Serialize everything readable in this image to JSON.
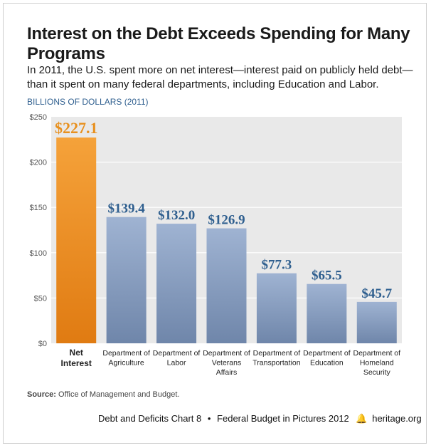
{
  "header": {
    "title": "Interest on the Debt Exceeds Spending for Many Programs",
    "subtitle": "In 2011, the U.S. spent more on net interest—interest paid on publicly held debt—than it spent on many federal departments, including Education and Labor.",
    "unit_label": "BILLIONS OF DOLLARS (2011)"
  },
  "source": {
    "label": "Source:",
    "text": "Office of Management and Budget."
  },
  "footer": {
    "series": "Debt and Deficits Chart 8",
    "separator": "•",
    "publication": "Federal Budget in Pictures 2012",
    "bell_glyph": "🔔",
    "site": "heritage.org"
  },
  "chart_data": {
    "type": "bar",
    "categories": [
      [
        "Net",
        "Interest"
      ],
      [
        "Department of",
        "Agriculture"
      ],
      [
        "Department of",
        "Labor"
      ],
      [
        "Department of",
        "Veterans",
        "Affairs"
      ],
      [
        "Department of",
        "Transportation"
      ],
      [
        "Department of",
        "Education"
      ],
      [
        "Department of",
        "Homeland",
        "Security"
      ]
    ],
    "values": [
      227.1,
      139.4,
      132.0,
      126.9,
      77.3,
      65.5,
      45.7
    ],
    "value_labels": [
      "$227.1",
      "$139.4",
      "$132.0",
      "$126.9",
      "$77.3",
      "$65.5",
      "$45.7"
    ],
    "ylim": [
      0,
      250
    ],
    "yticks": [
      0,
      50,
      100,
      150,
      200,
      250
    ],
    "ytick_labels": [
      "$0",
      "$50",
      "$100",
      "$150",
      "$200",
      "$250"
    ],
    "grid": true,
    "colors": {
      "highlight_bar_top": "#f5a23a",
      "highlight_bar_bottom": "#e07b12",
      "highlight_label": "#e8901e",
      "bar_top": "#9fb3d2",
      "bar_bottom": "#6f86aa",
      "bar_label": "#2f5f8f",
      "plot_bg": "#e9e9e9",
      "grid": "#ffffff"
    },
    "highlight_index": 0
  }
}
